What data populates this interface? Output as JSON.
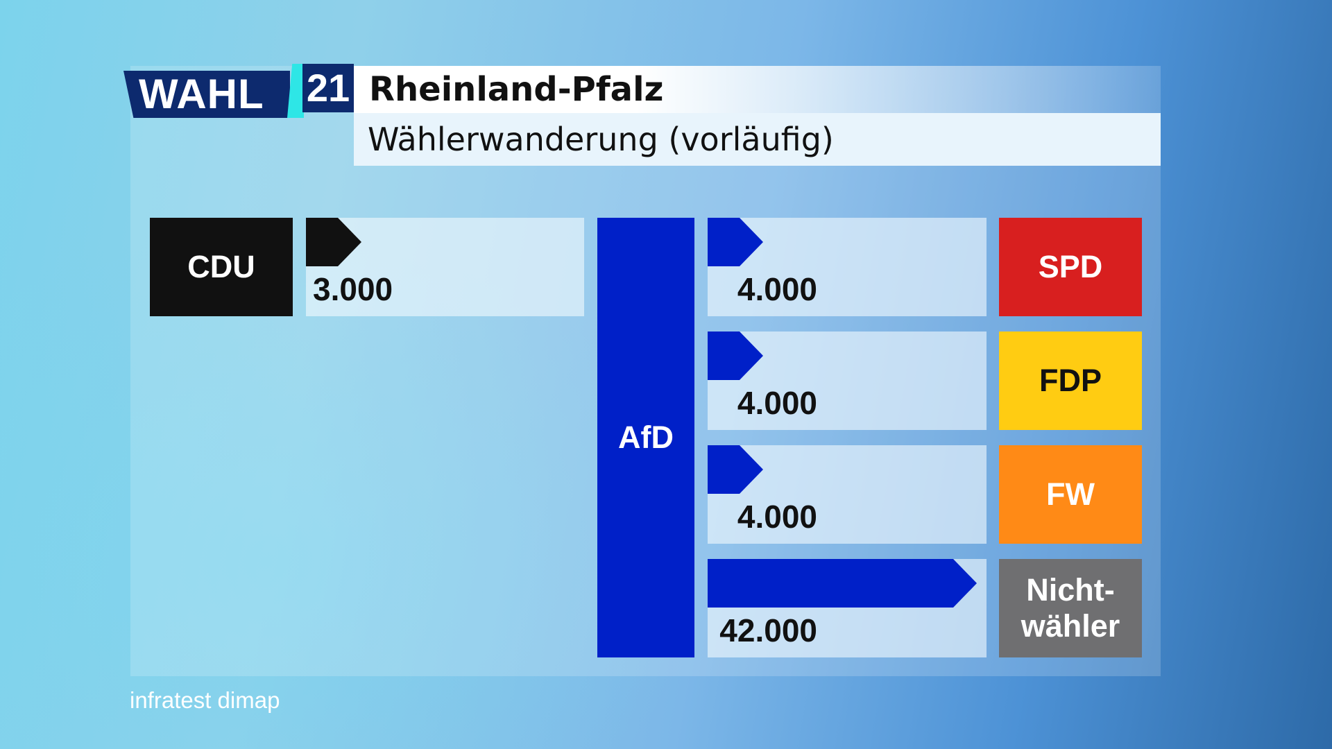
{
  "header": {
    "logo_text": "WAHL",
    "logo_number": "21",
    "title": "Rheinland-Pfalz",
    "subtitle": "Wählerwanderung (vorläufig)"
  },
  "colors": {
    "CDU": "#111111",
    "AfD": "#0020c8",
    "SPD": "#d81f1f",
    "FDP": "#ffcc12",
    "FW": "#ff8a16",
    "Nichtwaehler": "#6f6f71"
  },
  "chart_data": {
    "type": "bar",
    "title": "Rheinland-Pfalz",
    "subtitle": "Wählerwanderung (vorläufig)",
    "center": "AfD",
    "xlim": [
      0,
      42000
    ],
    "flows": [
      {
        "from": "CDU",
        "to": "AfD",
        "value": 3000,
        "label": "3.000"
      },
      {
        "from": "AfD",
        "to": "SPD",
        "value": 4000,
        "label": "4.000"
      },
      {
        "from": "AfD",
        "to": "FDP",
        "value": 4000,
        "label": "4.000"
      },
      {
        "from": "AfD",
        "to": "FW",
        "value": 4000,
        "label": "4.000"
      },
      {
        "from": "AfD",
        "to": "Nichtwähler",
        "value": 42000,
        "label": "42.000"
      }
    ],
    "parties": {
      "CDU": "CDU",
      "AfD": "AfD",
      "SPD": "SPD",
      "FDP": "FDP",
      "FW": "FW",
      "Nichtwaehler": "Nicht-\nwähler"
    }
  },
  "source": "infratest dimap"
}
